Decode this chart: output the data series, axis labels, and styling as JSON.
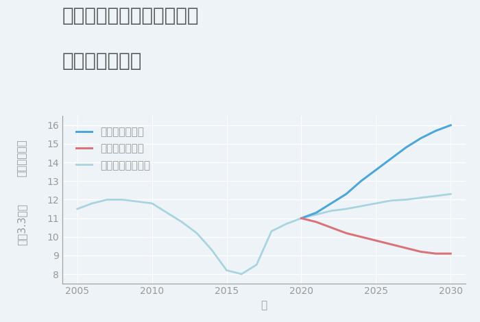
{
  "title_line1": "兵庫県丹波市春日町松森の",
  "title_line2": "土地の価格推移",
  "xlabel": "年",
  "ylabel_top": "単価（万円）",
  "ylabel_bottom": "坪（3.3㎡）",
  "xlim": [
    2004,
    2031
  ],
  "ylim": [
    7.5,
    16.5
  ],
  "yticks": [
    8,
    9,
    10,
    11,
    12,
    13,
    14,
    15,
    16
  ],
  "xticks": [
    2005,
    2010,
    2015,
    2020,
    2025,
    2030
  ],
  "normal_x": [
    2005,
    2006,
    2007,
    2008,
    2009,
    2010,
    2011,
    2012,
    2013,
    2014,
    2015,
    2016,
    2017,
    2018,
    2019,
    2020,
    2021,
    2022,
    2023,
    2024,
    2025,
    2026,
    2027,
    2028,
    2029,
    2030
  ],
  "normal_y": [
    11.5,
    11.8,
    12.0,
    12.0,
    11.9,
    11.8,
    11.3,
    10.8,
    10.2,
    9.3,
    8.2,
    8.0,
    8.5,
    10.3,
    10.7,
    11.0,
    11.2,
    11.4,
    11.5,
    11.65,
    11.8,
    11.95,
    12.0,
    12.1,
    12.2,
    12.3
  ],
  "good_x": [
    2020,
    2021,
    2022,
    2023,
    2024,
    2025,
    2026,
    2027,
    2028,
    2029,
    2030
  ],
  "good_y": [
    11.0,
    11.3,
    11.8,
    12.3,
    13.0,
    13.6,
    14.2,
    14.8,
    15.3,
    15.7,
    16.0
  ],
  "bad_x": [
    2020,
    2021,
    2022,
    2023,
    2024,
    2025,
    2026,
    2027,
    2028,
    2029,
    2030
  ],
  "bad_y": [
    11.0,
    10.8,
    10.5,
    10.2,
    10.0,
    9.8,
    9.6,
    9.4,
    9.2,
    9.1,
    9.1
  ],
  "color_good": "#4da6d9",
  "color_bad": "#d9737a",
  "color_normal": "#a8d4e0",
  "legend_good": "グッドシナリオ",
  "legend_bad": "バッドシナリオ",
  "legend_normal": "ノーマルシナリオ",
  "bg_color": "#eef3f7",
  "grid_color": "#ffffff",
  "title_color": "#555555",
  "label_color": "#999999",
  "title_fontsize": 20,
  "label_fontsize": 11,
  "tick_fontsize": 10,
  "legend_fontsize": 11
}
